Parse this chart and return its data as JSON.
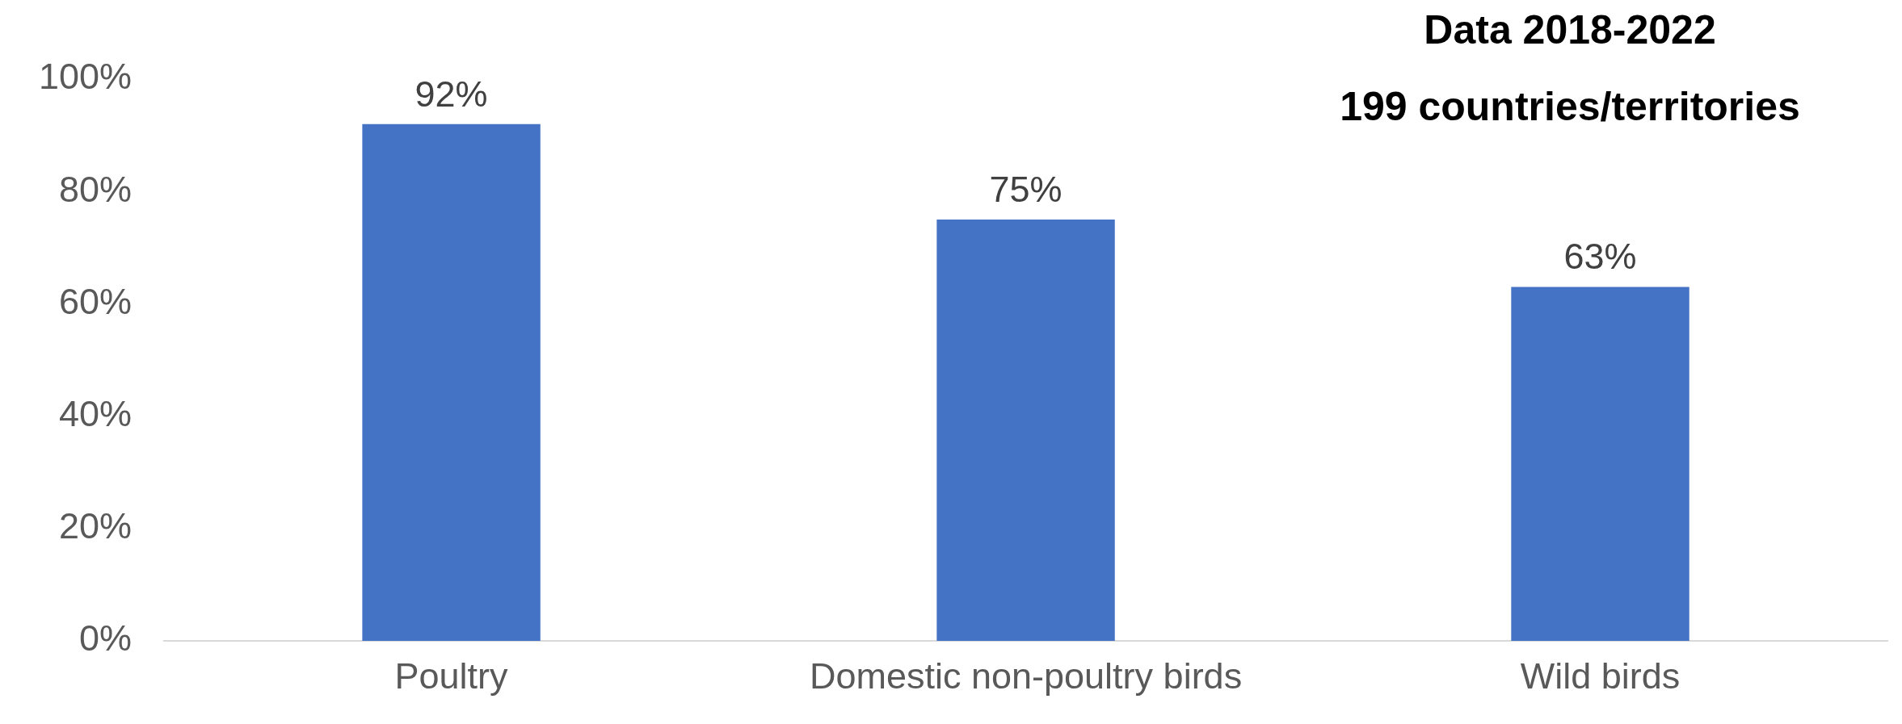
{
  "chart_data": {
    "type": "bar",
    "categories": [
      "Poultry",
      "Domestic non-poultry birds",
      "Wild birds"
    ],
    "values": [
      92,
      75,
      63
    ],
    "color": "#4472c4",
    "ylim": [
      0,
      100
    ],
    "yticks": [
      {
        "value": 0,
        "label": "0%"
      },
      {
        "value": 20,
        "label": "20%"
      },
      {
        "value": 40,
        "label": "40%"
      },
      {
        "value": 60,
        "label": "60%"
      },
      {
        "value": 80,
        "label": "80%"
      },
      {
        "value": 100,
        "label": "100%"
      }
    ],
    "grid": false,
    "data_labels": true,
    "value_labels": [
      "92%",
      "75%",
      "63%"
    ],
    "annotations": [
      "Data 2018-2022",
      "199 countries/territories"
    ]
  }
}
